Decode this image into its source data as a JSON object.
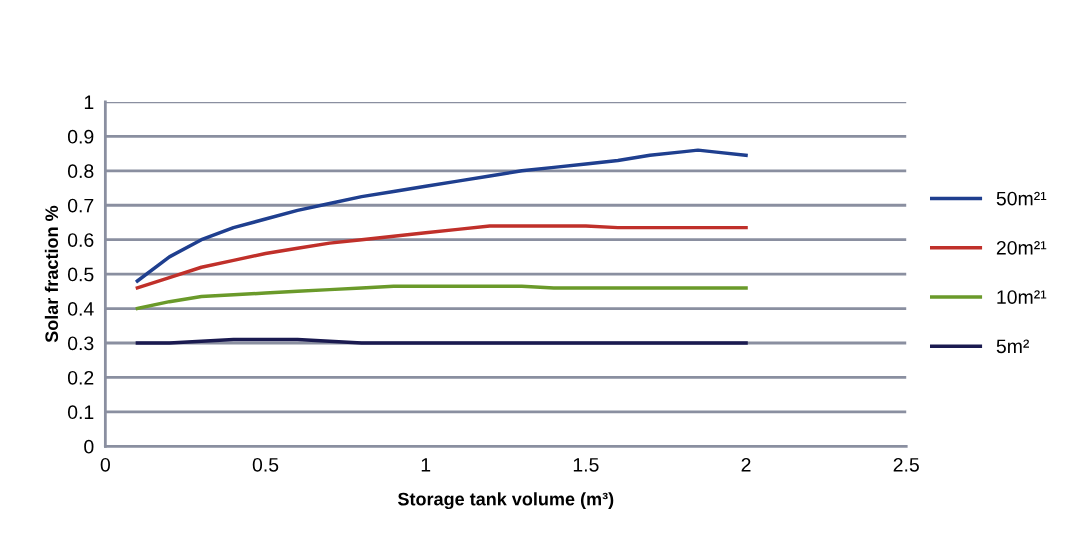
{
  "chart_data": {
    "type": "line",
    "xlabel": "Storage tank volume (m³)",
    "ylabel": "Solar fraction %",
    "xlim": [
      0,
      2.5
    ],
    "xticks": [
      0,
      0.5,
      1,
      1.5,
      2,
      2.5
    ],
    "ylim": [
      0,
      1
    ],
    "yticks": [
      0,
      0.1,
      0.2,
      0.3,
      0.4,
      0.5,
      0.6,
      0.7,
      0.8,
      0.9,
      1
    ],
    "grid": "y",
    "legend": "right",
    "marker": "none",
    "line_style": "solid",
    "x": [
      0.1,
      0.2,
      0.3,
      0.4,
      0.5,
      0.6,
      0.7,
      0.8,
      0.9,
      1.0,
      1.1,
      1.2,
      1.3,
      1.4,
      1.5,
      1.6,
      1.7,
      1.8,
      1.85,
      1.9,
      2.0
    ],
    "series": [
      {
        "name": "50m²¹",
        "color": "#1f3f8f",
        "values": [
          0.48,
          0.55,
          0.6,
          0.635,
          0.66,
          0.685,
          0.705,
          0.725,
          0.74,
          0.755,
          0.77,
          0.785,
          0.8,
          0.81,
          0.82,
          0.83,
          0.845,
          0.855,
          0.86,
          0.855,
          0.845
        ]
      },
      {
        "name": "20m²¹",
        "color": "#c0302a",
        "values": [
          0.46,
          0.49,
          0.52,
          0.54,
          0.56,
          0.575,
          0.59,
          0.6,
          0.61,
          0.62,
          0.63,
          0.64,
          0.64,
          0.64,
          0.64,
          0.635,
          0.635,
          0.635,
          0.635,
          0.635,
          0.635
        ]
      },
      {
        "name": "10m²¹",
        "color": "#6a9a2a",
        "values": [
          0.4,
          0.42,
          0.435,
          0.44,
          0.445,
          0.45,
          0.455,
          0.46,
          0.465,
          0.465,
          0.465,
          0.465,
          0.465,
          0.46,
          0.46,
          0.46,
          0.46,
          0.46,
          0.46,
          0.46,
          0.46
        ]
      },
      {
        "name": "5m²",
        "color": "#1a1a50",
        "values": [
          0.3,
          0.3,
          0.305,
          0.31,
          0.31,
          0.31,
          0.305,
          0.3,
          0.3,
          0.3,
          0.3,
          0.3,
          0.3,
          0.3,
          0.3,
          0.3,
          0.3,
          0.3,
          0.3,
          0.3,
          0.3
        ]
      }
    ]
  }
}
